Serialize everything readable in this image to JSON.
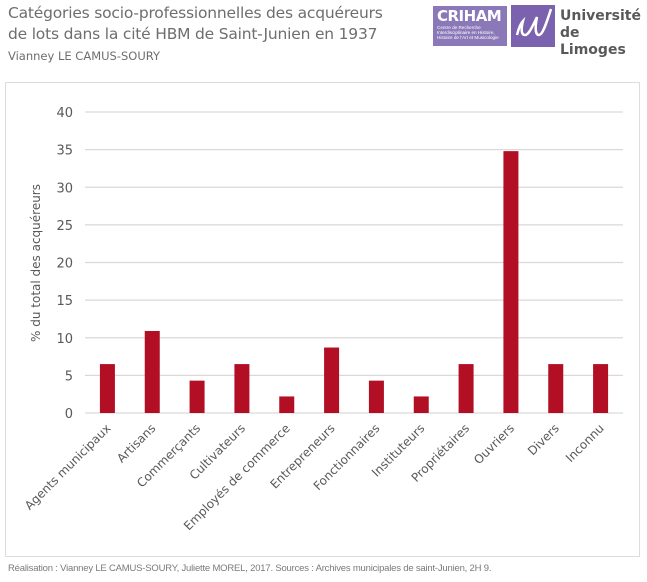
{
  "header": {
    "title_line1": "Catégories socio-professionnelles des acquéreurs",
    "title_line2": "de lots dans la cité HBM de Saint-Junien en 1937",
    "author": "Vianney LE CAMUS-SOURY"
  },
  "logos": {
    "criham_name": "CRIHAM",
    "criham_subtitle": "Centre de Recherche Interdisciplinaire en Histoire, Histoire de l'Art et Musicologie",
    "university_line1": "Université",
    "university_line2": "de Limoges"
  },
  "colors": {
    "bar": "#b30f24",
    "grid": "#d9d9d9",
    "text": "#595959"
  },
  "chart_data": {
    "type": "bar",
    "title": "Catégories socio-professionnelles des acquéreurs de lots dans la cité HBM de Saint-Junien en 1937",
    "xlabel": "",
    "ylabel": "% du total des acquéreurs",
    "ylim": [
      0,
      40
    ],
    "yticks": [
      0,
      5,
      10,
      15,
      20,
      25,
      30,
      35,
      40
    ],
    "grid": true,
    "categories": [
      "Agents municipaux",
      "Artisans",
      "Commerçants",
      "Cultivateurs",
      "Employés de commerce",
      "Entrepreneurs",
      "Fonctionnaires",
      "Instituteurs",
      "Propriétaires",
      "Ouvriers",
      "Divers",
      "Inconnu"
    ],
    "values": [
      6.5,
      10.9,
      4.3,
      6.5,
      2.2,
      8.7,
      4.3,
      2.2,
      6.5,
      34.8,
      6.5,
      6.5
    ]
  },
  "footer": {
    "credits": "Réalisation : Vianney LE CAMUS-SOURY, Juliette MOREL, 2017.  Sources : Archives municipales de saint-Junien, 2H 9."
  }
}
